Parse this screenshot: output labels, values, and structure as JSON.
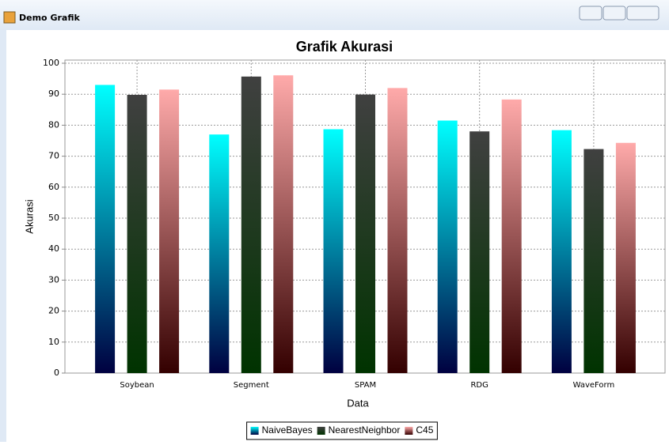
{
  "window_title": "Demo Grafik",
  "chart_data": {
    "type": "bar",
    "title": "Grafik Akurasi",
    "x_label": "Data",
    "y_label": "Akurasi",
    "categories": [
      "Soybean",
      "Segment",
      "SPAM",
      "RDG",
      "WaveForm"
    ],
    "series": [
      {
        "name": "NaiveBayes",
        "color": "#00ffff",
        "color_bottom": "#000040",
        "values": [
          93,
          77,
          78.7,
          81.5,
          78.4
        ]
      },
      {
        "name": "NearestNeighbor",
        "color": "#404040",
        "color_bottom": "#003300",
        "values": [
          89.8,
          95.7,
          89.9,
          78,
          72.3
        ]
      },
      {
        "name": "C45",
        "color": "#ffaaaa",
        "color_bottom": "#330000",
        "values": [
          91.5,
          96.1,
          92,
          88.3,
          74.3
        ]
      }
    ],
    "ylim": [
      0,
      100
    ],
    "yticks": [
      0,
      10,
      20,
      30,
      40,
      50,
      60,
      70,
      80,
      90,
      100
    ],
    "grid": true,
    "legend": "bottom"
  }
}
